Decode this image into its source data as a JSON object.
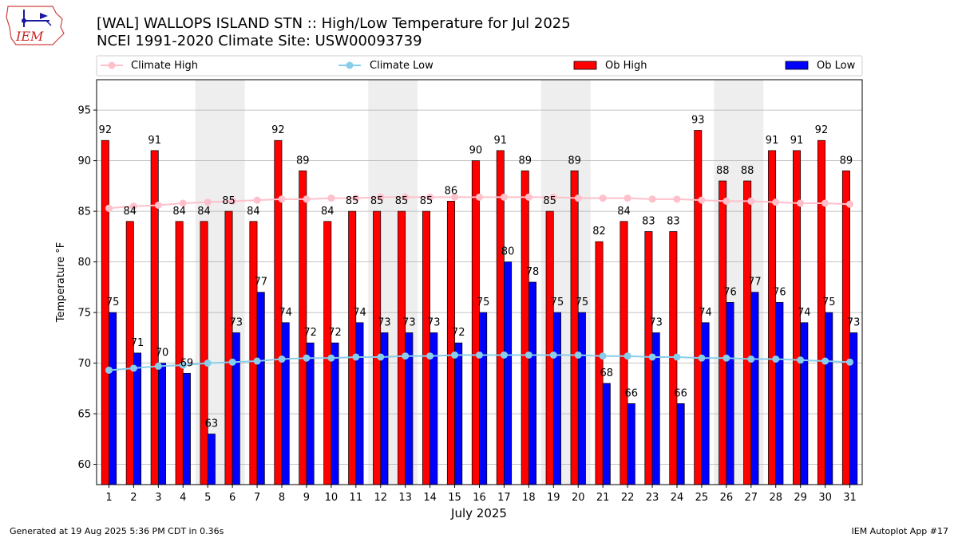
{
  "header": {
    "logo_text": "IEM",
    "title_line1": "[WAL] WALLOPS ISLAND STN :: High/Low Temperature for Jul 2025",
    "title_line2": "NCEI 1991-2020 Climate Site: USW00093739"
  },
  "footer": {
    "left": "Generated at 19 Aug 2025 5:36 PM CDT in 0.36s",
    "right": "IEM Autoplot App #17"
  },
  "colors": {
    "ob_high": "#ff0000",
    "ob_low": "#0000ff",
    "climate_high": "#ffc0cb",
    "climate_low": "#87ceeb",
    "weekend_band": "#eeeeee",
    "grid": "#b0b0b0"
  },
  "chart_data": {
    "type": "bar",
    "xlabel": "July 2025",
    "ylabel": "Temperature °F",
    "ylim": [
      58,
      98
    ],
    "yticks": [
      60,
      65,
      70,
      75,
      80,
      85,
      90,
      95
    ],
    "grid": "horizontal",
    "legend_position": "top",
    "categories": [
      "1",
      "2",
      "3",
      "4",
      "5",
      "6",
      "7",
      "8",
      "9",
      "10",
      "11",
      "12",
      "13",
      "14",
      "15",
      "16",
      "17",
      "18",
      "19",
      "20",
      "21",
      "22",
      "23",
      "24",
      "25",
      "26",
      "27",
      "28",
      "29",
      "30",
      "31"
    ],
    "shaded_weekends": [
      [
        5,
        6
      ],
      [
        12,
        13
      ],
      [
        19,
        20
      ],
      [
        26,
        27
      ]
    ],
    "series": [
      {
        "name": "Ob High",
        "kind": "bar",
        "values": [
          92,
          84,
          91,
          84,
          84,
          85,
          84,
          92,
          89,
          84,
          85,
          85,
          85,
          85,
          86,
          90,
          91,
          89,
          85,
          89,
          82,
          84,
          83,
          83,
          93,
          88,
          88,
          91,
          91,
          92,
          89
        ]
      },
      {
        "name": "Ob Low",
        "kind": "bar",
        "values": [
          75,
          71,
          70,
          69,
          63,
          73,
          77,
          74,
          72,
          72,
          74,
          73,
          73,
          73,
          72,
          75,
          80,
          78,
          75,
          75,
          68,
          66,
          73,
          66,
          74,
          76,
          77,
          76,
          74,
          75,
          73
        ]
      },
      {
        "name": "Climate High",
        "kind": "line",
        "values": [
          85.3,
          85.5,
          85.6,
          85.8,
          85.9,
          86.0,
          86.1,
          86.2,
          86.2,
          86.3,
          86.3,
          86.4,
          86.4,
          86.4,
          86.4,
          86.4,
          86.4,
          86.4,
          86.4,
          86.3,
          86.3,
          86.3,
          86.2,
          86.2,
          86.1,
          86.0,
          86.0,
          85.9,
          85.8,
          85.8,
          85.7
        ]
      },
      {
        "name": "Climate Low",
        "kind": "line",
        "values": [
          69.3,
          69.5,
          69.7,
          69.8,
          70.0,
          70.1,
          70.2,
          70.4,
          70.5,
          70.5,
          70.6,
          70.6,
          70.7,
          70.7,
          70.8,
          70.8,
          70.8,
          70.8,
          70.8,
          70.8,
          70.7,
          70.7,
          70.6,
          70.6,
          70.5,
          70.5,
          70.4,
          70.4,
          70.3,
          70.2,
          70.1
        ]
      }
    ]
  }
}
